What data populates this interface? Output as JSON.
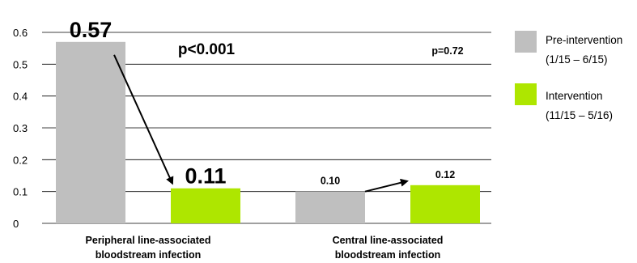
{
  "chart_data": {
    "type": "bar",
    "categories": [
      [
        "Peripheral line-associated",
        "bloodstream infection"
      ],
      [
        "Central line-associated",
        "bloodstream infection"
      ]
    ],
    "series": [
      {
        "name": "Pre-intervention",
        "period": "(1/15 – 6/15)",
        "color": "#bfbfbf",
        "values": [
          0.57,
          0.1
        ],
        "value_labels": [
          "0.57",
          "0.10"
        ]
      },
      {
        "name": "Intervention",
        "period": "(11/15 – 5/16)",
        "color": "#aee600",
        "values": [
          0.11,
          0.12
        ],
        "value_labels": [
          "0.11",
          "0.12"
        ]
      }
    ],
    "ylim": [
      0,
      0.6
    ],
    "yticks": [
      {
        "v": 0,
        "label": "0"
      },
      {
        "v": 0.1,
        "label": "0.1"
      },
      {
        "v": 0.2,
        "label": "0.2"
      },
      {
        "v": 0.3,
        "label": "0.3"
      },
      {
        "v": 0.4,
        "label": "0.4"
      },
      {
        "v": 0.5,
        "label": "0.5"
      },
      {
        "v": 0.6,
        "label": "0.6"
      }
    ],
    "grid": true,
    "legend": "right",
    "annotations": [
      "p<0.001",
      "p=0.72"
    ],
    "title": "",
    "xlabel": "",
    "ylabel": ""
  }
}
